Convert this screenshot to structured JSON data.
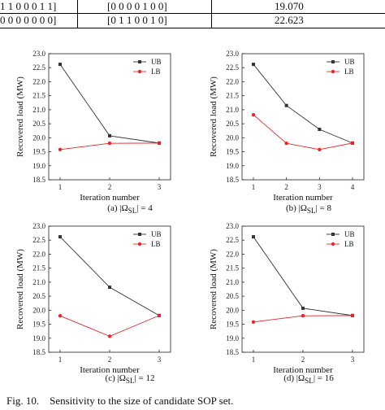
{
  "table_fragment": {
    "rows": [
      [
        "1 1 0 0 0 1 1]",
        "[0 0 0 0 1 0 0]",
        "19.070"
      ],
      [
        "0 0 0 0 0 0 0]",
        "[0 1 1 0 0 1 0]",
        "22.623"
      ]
    ]
  },
  "figure_caption": {
    "label": "Fig. 10.",
    "text": "Sensitivity to the size of candidate SOP set."
  },
  "colors": {
    "ub": "#333333",
    "lb": "#e8272b"
  },
  "chart_data": [
    {
      "type": "line",
      "panel_caption": "(a) |Ω",
      "caption_sub": "SL",
      "caption_tail": "| = 4",
      "xlabel": "Iteration number",
      "ylabel": "Recovered load (MW)",
      "x": [
        1,
        2,
        3
      ],
      "xlim": [
        1,
        3
      ],
      "ylim": [
        18.5,
        23.0
      ],
      "yticks": [
        "18.5",
        "19.0",
        "19.5",
        "20.0",
        "20.5",
        "21.0",
        "21.5",
        "22.0",
        "22.5",
        "23.0"
      ],
      "legend": "top-right",
      "series": [
        {
          "name": "UB",
          "values": [
            22.62,
            20.07,
            19.81
          ]
        },
        {
          "name": "LB",
          "values": [
            19.58,
            19.8,
            19.81
          ]
        }
      ]
    },
    {
      "type": "line",
      "panel_caption": "(b) |Ω",
      "caption_sub": "SL",
      "caption_tail": "| = 8",
      "xlabel": "Iteration number",
      "ylabel": "Recovered load (MW)",
      "x": [
        1,
        2,
        3,
        4
      ],
      "xlim": [
        1,
        4
      ],
      "ylim": [
        18.5,
        23.0
      ],
      "yticks": [
        "18.5",
        "19.0",
        "19.5",
        "20.0",
        "20.5",
        "21.0",
        "21.5",
        "22.0",
        "22.5",
        "23.0"
      ],
      "legend": "top-right",
      "series": [
        {
          "name": "UB",
          "values": [
            22.62,
            21.15,
            20.3,
            19.81
          ]
        },
        {
          "name": "LB",
          "values": [
            20.82,
            19.8,
            19.58,
            19.81
          ]
        }
      ]
    },
    {
      "type": "line",
      "panel_caption": "(c) |Ω",
      "caption_sub": "SL",
      "caption_tail": "| = 12",
      "xlabel": "Iteration number",
      "ylabel": "Recovered load (MW)",
      "x": [
        1,
        2,
        3
      ],
      "xlim": [
        1,
        3
      ],
      "ylim": [
        18.5,
        23.0
      ],
      "yticks": [
        "18.5",
        "19.0",
        "19.5",
        "20.0",
        "20.5",
        "21.0",
        "21.5",
        "22.0",
        "22.5",
        "23.0"
      ],
      "legend": "top-right",
      "series": [
        {
          "name": "UB",
          "values": [
            22.62,
            20.82,
            19.81
          ]
        },
        {
          "name": "LB",
          "values": [
            19.8,
            19.07,
            19.81
          ]
        }
      ]
    },
    {
      "type": "line",
      "panel_caption": "(d) |Ω",
      "caption_sub": "SL",
      "caption_tail": "| = 16",
      "xlabel": "Iteration number",
      "ylabel": "Recovered load (MW)",
      "x": [
        1,
        2,
        3
      ],
      "xlim": [
        1,
        3
      ],
      "ylim": [
        18.5,
        23.0
      ],
      "yticks": [
        "18.5",
        "19.0",
        "19.5",
        "20.0",
        "20.5",
        "21.0",
        "21.5",
        "22.0",
        "22.5",
        "23.0"
      ],
      "legend": "top-right",
      "series": [
        {
          "name": "UB",
          "values": [
            22.62,
            20.07,
            19.81
          ]
        },
        {
          "name": "LB",
          "values": [
            19.58,
            19.8,
            19.81
          ]
        }
      ]
    }
  ]
}
